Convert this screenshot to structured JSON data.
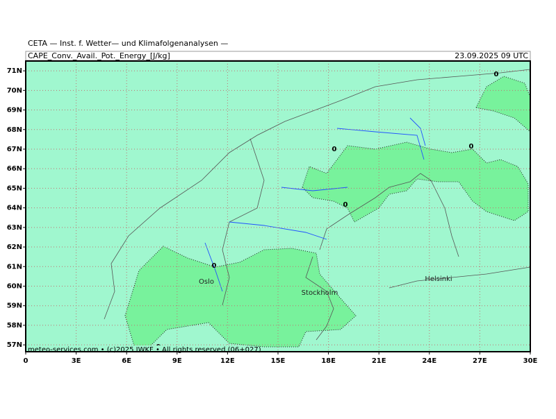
{
  "header": {
    "institute": "CETA — Inst. f. Wetter— und Klimafolgenanalysen —",
    "title": "CAPE_Conv._Avail._Pot._Energy_[J/kg]",
    "valid": "23.09.2025 09 UTC"
  },
  "map": {
    "xlim": [
      0,
      30
    ],
    "ylim": [
      56.65,
      71.5
    ],
    "xticks": [
      {
        "value": 0,
        "label": "0"
      },
      {
        "value": 3,
        "label": "3E"
      },
      {
        "value": 6,
        "label": "6E"
      },
      {
        "value": 9,
        "label": "9E"
      },
      {
        "value": 12,
        "label": "12E"
      },
      {
        "value": 15,
        "label": "15E"
      },
      {
        "value": 18,
        "label": "18E"
      },
      {
        "value": 21,
        "label": "21E"
      },
      {
        "value": 24,
        "label": "24E"
      },
      {
        "value": 27,
        "label": "27E"
      },
      {
        "value": 30,
        "label": "30E"
      }
    ],
    "yticks": [
      {
        "value": 57,
        "label": "57N"
      },
      {
        "value": 58,
        "label": "58N"
      },
      {
        "value": 59,
        "label": "59N"
      },
      {
        "value": 60,
        "label": "60N"
      },
      {
        "value": 61,
        "label": "61N"
      },
      {
        "value": 62,
        "label": "62N"
      },
      {
        "value": 63,
        "label": "63N"
      },
      {
        "value": 64,
        "label": "64N"
      },
      {
        "value": 65,
        "label": "65N"
      },
      {
        "value": 66,
        "label": "66N"
      },
      {
        "value": 67,
        "label": "67N"
      },
      {
        "value": 68,
        "label": "68N"
      },
      {
        "value": 69,
        "label": "69N"
      },
      {
        "value": 70,
        "label": "70N"
      },
      {
        "value": 71,
        "label": "71N"
      }
    ],
    "cities": [
      "Oslo",
      "Stockholm",
      "Helsinki"
    ],
    "contour_labels": [
      "0",
      "0",
      "0",
      "0",
      "0",
      "0"
    ],
    "footer": "meteo-services.com • (c)2025 IWKF • All rights reserved (06+027)"
  }
}
